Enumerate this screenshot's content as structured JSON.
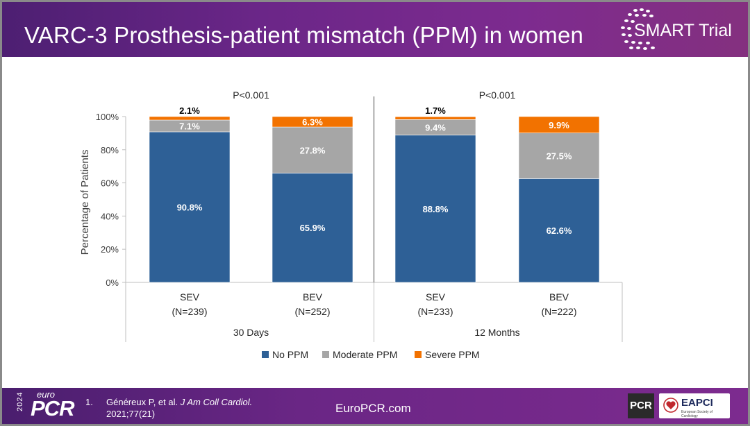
{
  "slide": {
    "title": "VARC-3 Prosthesis-patient mismatch (PPM) in women",
    "brand": "SMART Trial"
  },
  "colors": {
    "no_ppm": "#2e6096",
    "moderate_ppm": "#a6a6a6",
    "severe_ppm": "#f27200"
  },
  "chart_data": {
    "type": "bar",
    "stacked": true,
    "ylabel": "Percentage of Patients",
    "ylim": [
      0,
      100
    ],
    "yticks": [
      "0%",
      "20%",
      "40%",
      "60%",
      "80%",
      "100%"
    ],
    "groups": [
      {
        "label": "30 Days",
        "p_value": "P<0.001"
      },
      {
        "label": "12 Months",
        "p_value": "P<0.001"
      }
    ],
    "categories": [
      {
        "name": "SEV",
        "n": "(N=239)",
        "group": 0
      },
      {
        "name": "BEV",
        "n": "(N=252)",
        "group": 0
      },
      {
        "name": "SEV",
        "n": "(N=233)",
        "group": 1
      },
      {
        "name": "BEV",
        "n": "(N=222)",
        "group": 1
      }
    ],
    "series": [
      {
        "name": "No PPM",
        "color": "#2e6096",
        "values": [
          90.8,
          65.9,
          88.8,
          62.6
        ],
        "labels": [
          "90.8%",
          "65.9%",
          "88.8%",
          "62.6%"
        ]
      },
      {
        "name": "Moderate PPM",
        "color": "#a6a6a6",
        "values": [
          7.1,
          27.8,
          9.4,
          27.5
        ],
        "labels": [
          "7.1%",
          "27.8%",
          "9.4%",
          "27.5%"
        ]
      },
      {
        "name": "Severe PPM",
        "color": "#f27200",
        "values": [
          2.1,
          6.3,
          1.7,
          9.9
        ],
        "labels": [
          "2.1%",
          "6.3%",
          "1.7%",
          "9.9%"
        ]
      }
    ],
    "legend_position": "bottom"
  },
  "footer": {
    "year": "2024",
    "euro": "euro",
    "pcr": "PCR",
    "ref_number": "1.",
    "reference_text": "Généreux P, et al.",
    "reference_journal": "J Am Coll Cardiol.",
    "reference_vol": "2021;77(21)",
    "website": "EuroPCR.com",
    "pcr_badge": "PCR",
    "eapci_badge": "EAPCI",
    "eapci_sub": "European Society of Cardiology"
  }
}
